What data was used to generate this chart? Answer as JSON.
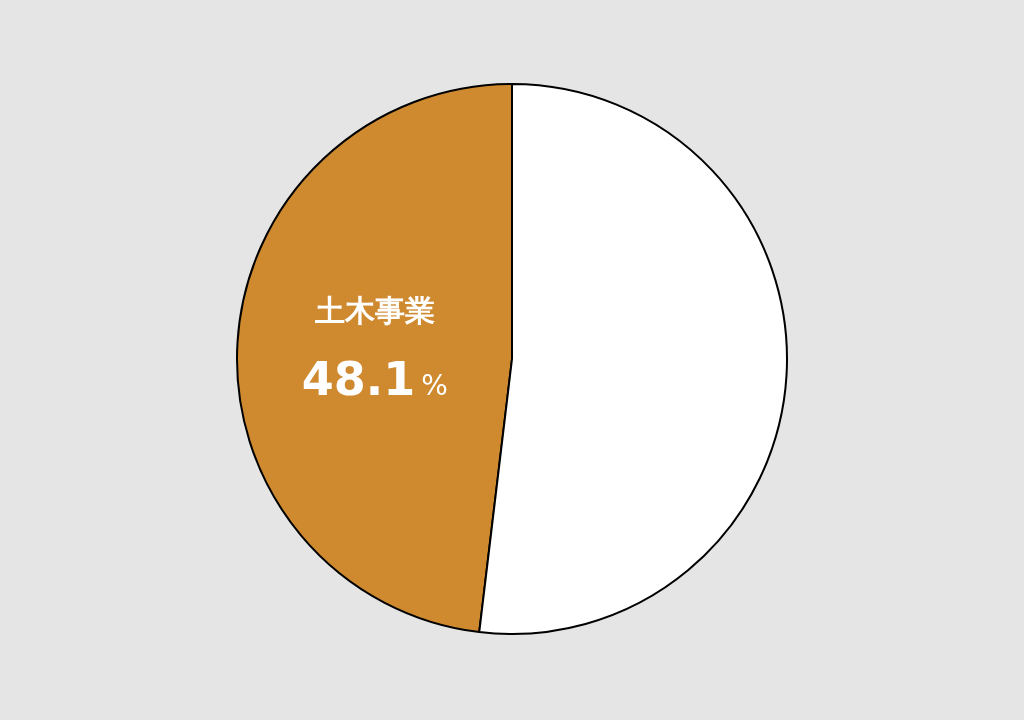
{
  "chart_data": {
    "type": "pie",
    "categories": [
      "土木事業",
      null
    ],
    "values": [
      48.1,
      51.9
    ],
    "colors": [
      "#cf8a30",
      "#ffffff"
    ],
    "value_labels": [
      "48.1%",
      null
    ]
  }
}
